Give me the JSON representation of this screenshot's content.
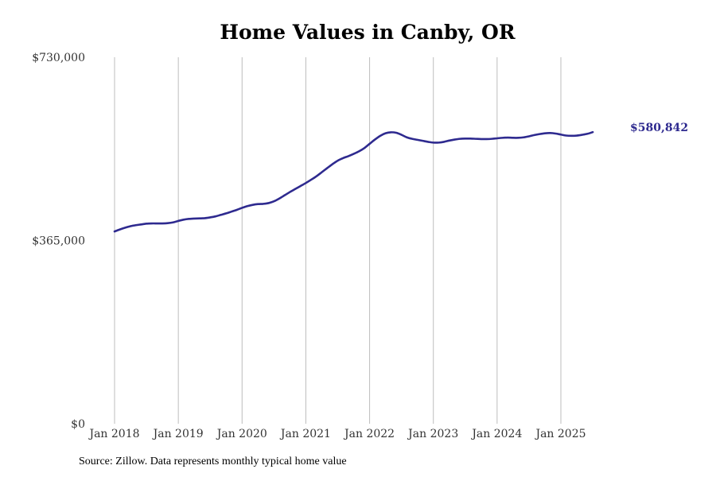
{
  "chart_data": {
    "type": "line",
    "title": "Home Values in Canby, OR",
    "xlabel": "",
    "ylabel": "",
    "ylim": [
      0,
      730000
    ],
    "y_ticks": [
      {
        "value": 0,
        "label": "$0"
      },
      {
        "value": 365000,
        "label": "$365,000"
      },
      {
        "value": 730000,
        "label": "$730,000"
      }
    ],
    "x_range": [
      2018.0,
      2025.917
    ],
    "x_ticks": [
      {
        "value": 2018,
        "label": "Jan 2018"
      },
      {
        "value": 2019,
        "label": "Jan 2019"
      },
      {
        "value": 2020,
        "label": "Jan 2020"
      },
      {
        "value": 2021,
        "label": "Jan 2021"
      },
      {
        "value": 2022,
        "label": "Jan 2022"
      },
      {
        "value": 2023,
        "label": "Jan 2023"
      },
      {
        "value": 2024,
        "label": "Jan 2024"
      },
      {
        "value": 2025,
        "label": "Jan 2025"
      }
    ],
    "grid": "vertical",
    "series": [
      {
        "name": "Typical home value",
        "color": "#2e2a8f",
        "points": [
          [
            2018.0,
            383000
          ],
          [
            2018.083,
            387000
          ],
          [
            2018.167,
            390500
          ],
          [
            2018.25,
            393500
          ],
          [
            2018.333,
            395500
          ],
          [
            2018.417,
            397000
          ],
          [
            2018.5,
            398500
          ],
          [
            2018.583,
            399000
          ],
          [
            2018.667,
            399000
          ],
          [
            2018.75,
            399000
          ],
          [
            2018.833,
            399500
          ],
          [
            2018.917,
            401000
          ],
          [
            2019.0,
            404000
          ],
          [
            2019.083,
            406500
          ],
          [
            2019.167,
            408000
          ],
          [
            2019.25,
            408700
          ],
          [
            2019.333,
            409000
          ],
          [
            2019.417,
            409500
          ],
          [
            2019.5,
            411000
          ],
          [
            2019.583,
            413000
          ],
          [
            2019.667,
            416000
          ],
          [
            2019.75,
            419000
          ],
          [
            2019.833,
            422500
          ],
          [
            2019.917,
            426000
          ],
          [
            2020.0,
            430000
          ],
          [
            2020.083,
            433500
          ],
          [
            2020.167,
            436000
          ],
          [
            2020.25,
            437500
          ],
          [
            2020.333,
            438000
          ],
          [
            2020.417,
            439500
          ],
          [
            2020.5,
            443000
          ],
          [
            2020.583,
            448500
          ],
          [
            2020.667,
            455000
          ],
          [
            2020.75,
            461500
          ],
          [
            2020.833,
            467500
          ],
          [
            2020.917,
            473500
          ],
          [
            2021.0,
            479500
          ],
          [
            2021.083,
            486000
          ],
          [
            2021.167,
            493000
          ],
          [
            2021.25,
            501000
          ],
          [
            2021.333,
            509000
          ],
          [
            2021.417,
            517000
          ],
          [
            2021.5,
            524000
          ],
          [
            2021.583,
            529000
          ],
          [
            2021.667,
            533000
          ],
          [
            2021.75,
            537500
          ],
          [
            2021.833,
            542500
          ],
          [
            2021.917,
            549000
          ],
          [
            2022.0,
            557500
          ],
          [
            2022.083,
            566000
          ],
          [
            2022.167,
            573500
          ],
          [
            2022.25,
            578500
          ],
          [
            2022.333,
            580500
          ],
          [
            2022.417,
            579500
          ],
          [
            2022.5,
            575500
          ],
          [
            2022.583,
            570500
          ],
          [
            2022.667,
            567500
          ],
          [
            2022.75,
            565500
          ],
          [
            2022.833,
            563500
          ],
          [
            2022.917,
            561500
          ],
          [
            2023.0,
            560000
          ],
          [
            2023.083,
            560000
          ],
          [
            2023.167,
            561500
          ],
          [
            2023.25,
            564000
          ],
          [
            2023.333,
            566000
          ],
          [
            2023.417,
            567500
          ],
          [
            2023.5,
            568000
          ],
          [
            2023.583,
            568000
          ],
          [
            2023.667,
            567500
          ],
          [
            2023.75,
            567000
          ],
          [
            2023.833,
            567000
          ],
          [
            2023.917,
            567500
          ],
          [
            2024.0,
            568500
          ],
          [
            2024.083,
            569500
          ],
          [
            2024.167,
            570000
          ],
          [
            2024.25,
            569500
          ],
          [
            2024.333,
            569500
          ],
          [
            2024.417,
            570500
          ],
          [
            2024.5,
            572500
          ],
          [
            2024.583,
            575000
          ],
          [
            2024.667,
            577000
          ],
          [
            2024.75,
            578500
          ],
          [
            2024.833,
            579000
          ],
          [
            2024.917,
            578000
          ],
          [
            2025.0,
            576000
          ],
          [
            2025.083,
            574000
          ],
          [
            2025.167,
            573500
          ],
          [
            2025.25,
            574000
          ],
          [
            2025.333,
            575500
          ],
          [
            2025.417,
            577500
          ],
          [
            2025.5,
            580842
          ]
        ],
        "end_label": "$580,842"
      }
    ]
  },
  "footer": {
    "source": "Source: Zillow. Data represents monthly typical home value"
  }
}
